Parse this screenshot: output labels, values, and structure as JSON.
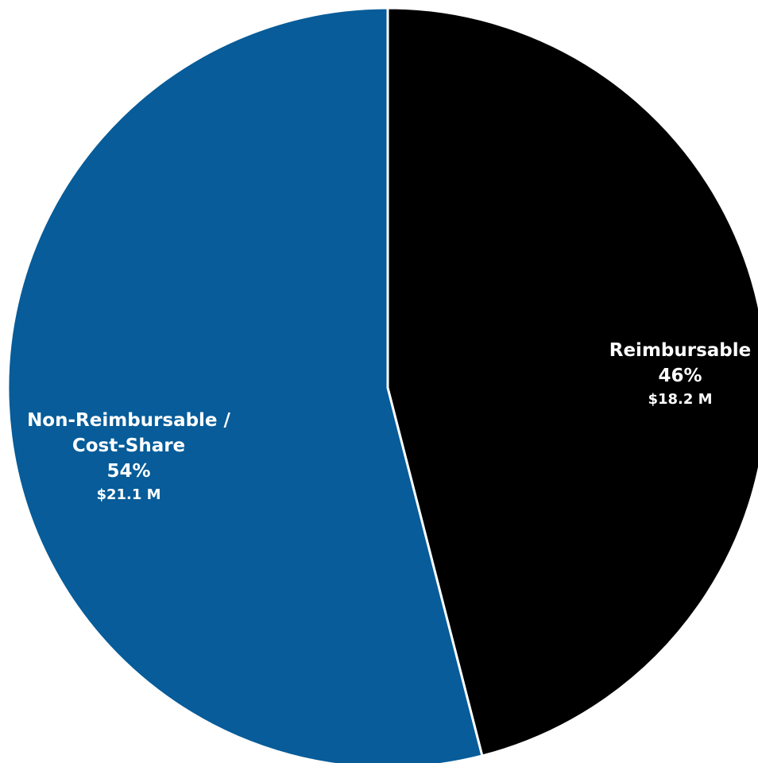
{
  "chart_data": {
    "type": "pie",
    "title": "",
    "start_angle_deg": 0,
    "direction": "clockwise",
    "slices": [
      {
        "label_lines": [
          "Reimbursable"
        ],
        "percent": 46,
        "percent_label": "46%",
        "amount_label": "$18.2 M",
        "value": 18.2,
        "color": "#000000"
      },
      {
        "label_lines": [
          "Non-Reimbursable /",
          "Cost-Share"
        ],
        "percent": 54,
        "percent_label": "54%",
        "amount_label": "$21.1 M",
        "value": 21.1,
        "color": "#075c99"
      }
    ]
  }
}
